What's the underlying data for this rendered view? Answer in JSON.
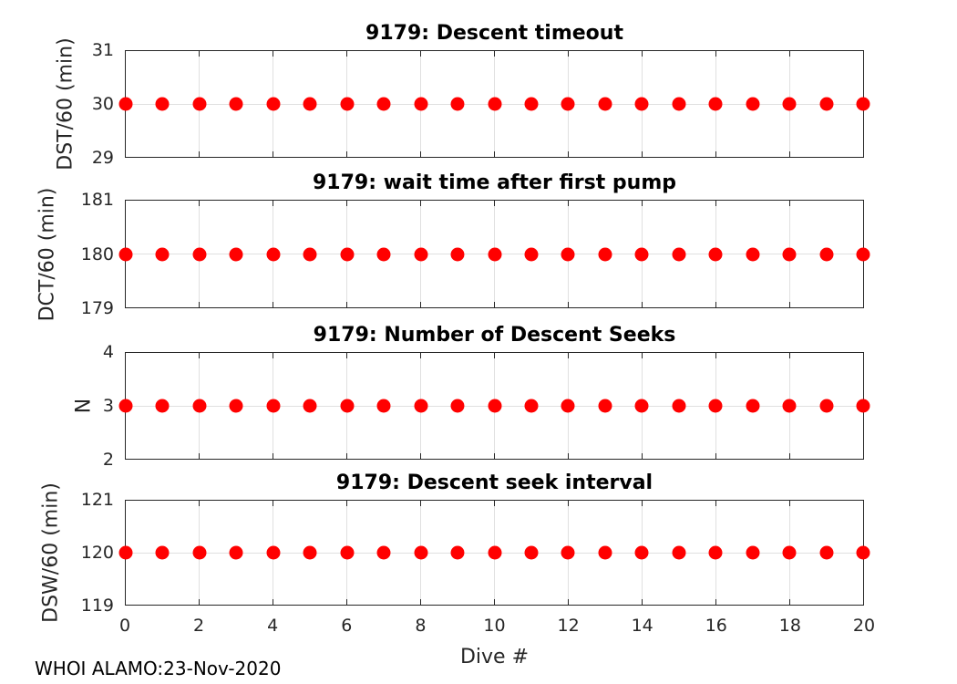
{
  "figure": {
    "xlabel": "Dive #",
    "footer": "WHOI ALAMO:23-Nov-2020",
    "colors": {
      "marker": "#ff0000",
      "grid": "#e0e0e0",
      "axis": "#262626",
      "tick_text": "#262626",
      "title_text": "#000000"
    }
  },
  "chart_data": [
    {
      "type": "scatter",
      "title": "9179: Descent timeout",
      "ylabel": "DST/60 (min)",
      "xlabel": "",
      "x": [
        0,
        1,
        2,
        3,
        4,
        5,
        6,
        7,
        8,
        9,
        10,
        11,
        12,
        13,
        14,
        15,
        16,
        17,
        18,
        19,
        20
      ],
      "y": [
        30,
        30,
        30,
        30,
        30,
        30,
        30,
        30,
        30,
        30,
        30,
        30,
        30,
        30,
        30,
        30,
        30,
        30,
        30,
        30,
        30
      ],
      "xlim": [
        0,
        20
      ],
      "ylim": [
        29,
        31
      ],
      "xticks": [
        0,
        2,
        4,
        6,
        8,
        10,
        12,
        14,
        16,
        18,
        20
      ],
      "yticks": [
        29,
        30,
        31
      ],
      "grid": true,
      "legend": null
    },
    {
      "type": "scatter",
      "title": "9179: wait time after first pump",
      "ylabel": "DCT/60 (min)",
      "xlabel": "",
      "x": [
        0,
        1,
        2,
        3,
        4,
        5,
        6,
        7,
        8,
        9,
        10,
        11,
        12,
        13,
        14,
        15,
        16,
        17,
        18,
        19,
        20
      ],
      "y": [
        180,
        180,
        180,
        180,
        180,
        180,
        180,
        180,
        180,
        180,
        180,
        180,
        180,
        180,
        180,
        180,
        180,
        180,
        180,
        180,
        180
      ],
      "xlim": [
        0,
        20
      ],
      "ylim": [
        179,
        181
      ],
      "xticks": [
        0,
        2,
        4,
        6,
        8,
        10,
        12,
        14,
        16,
        18,
        20
      ],
      "yticks": [
        179,
        180,
        181
      ],
      "grid": true,
      "legend": null
    },
    {
      "type": "scatter",
      "title": "9179: Number of Descent Seeks",
      "ylabel": "N",
      "xlabel": "",
      "x": [
        0,
        1,
        2,
        3,
        4,
        5,
        6,
        7,
        8,
        9,
        10,
        11,
        12,
        13,
        14,
        15,
        16,
        17,
        18,
        19,
        20
      ],
      "y": [
        3,
        3,
        3,
        3,
        3,
        3,
        3,
        3,
        3,
        3,
        3,
        3,
        3,
        3,
        3,
        3,
        3,
        3,
        3,
        3,
        3
      ],
      "xlim": [
        0,
        20
      ],
      "ylim": [
        2,
        4
      ],
      "xticks": [
        0,
        2,
        4,
        6,
        8,
        10,
        12,
        14,
        16,
        18,
        20
      ],
      "yticks": [
        2,
        3,
        4
      ],
      "grid": true,
      "legend": null
    },
    {
      "type": "scatter",
      "title": "9179: Descent seek interval",
      "ylabel": "DSW/60 (min)",
      "xlabel": "Dive #",
      "x": [
        0,
        1,
        2,
        3,
        4,
        5,
        6,
        7,
        8,
        9,
        10,
        11,
        12,
        13,
        14,
        15,
        16,
        17,
        18,
        19,
        20
      ],
      "y": [
        120,
        120,
        120,
        120,
        120,
        120,
        120,
        120,
        120,
        120,
        120,
        120,
        120,
        120,
        120,
        120,
        120,
        120,
        120,
        120,
        120
      ],
      "xlim": [
        0,
        20
      ],
      "ylim": [
        119,
        121
      ],
      "xticks": [
        0,
        2,
        4,
        6,
        8,
        10,
        12,
        14,
        16,
        18,
        20
      ],
      "yticks": [
        119,
        120,
        121
      ],
      "grid": true,
      "legend": null
    }
  ]
}
